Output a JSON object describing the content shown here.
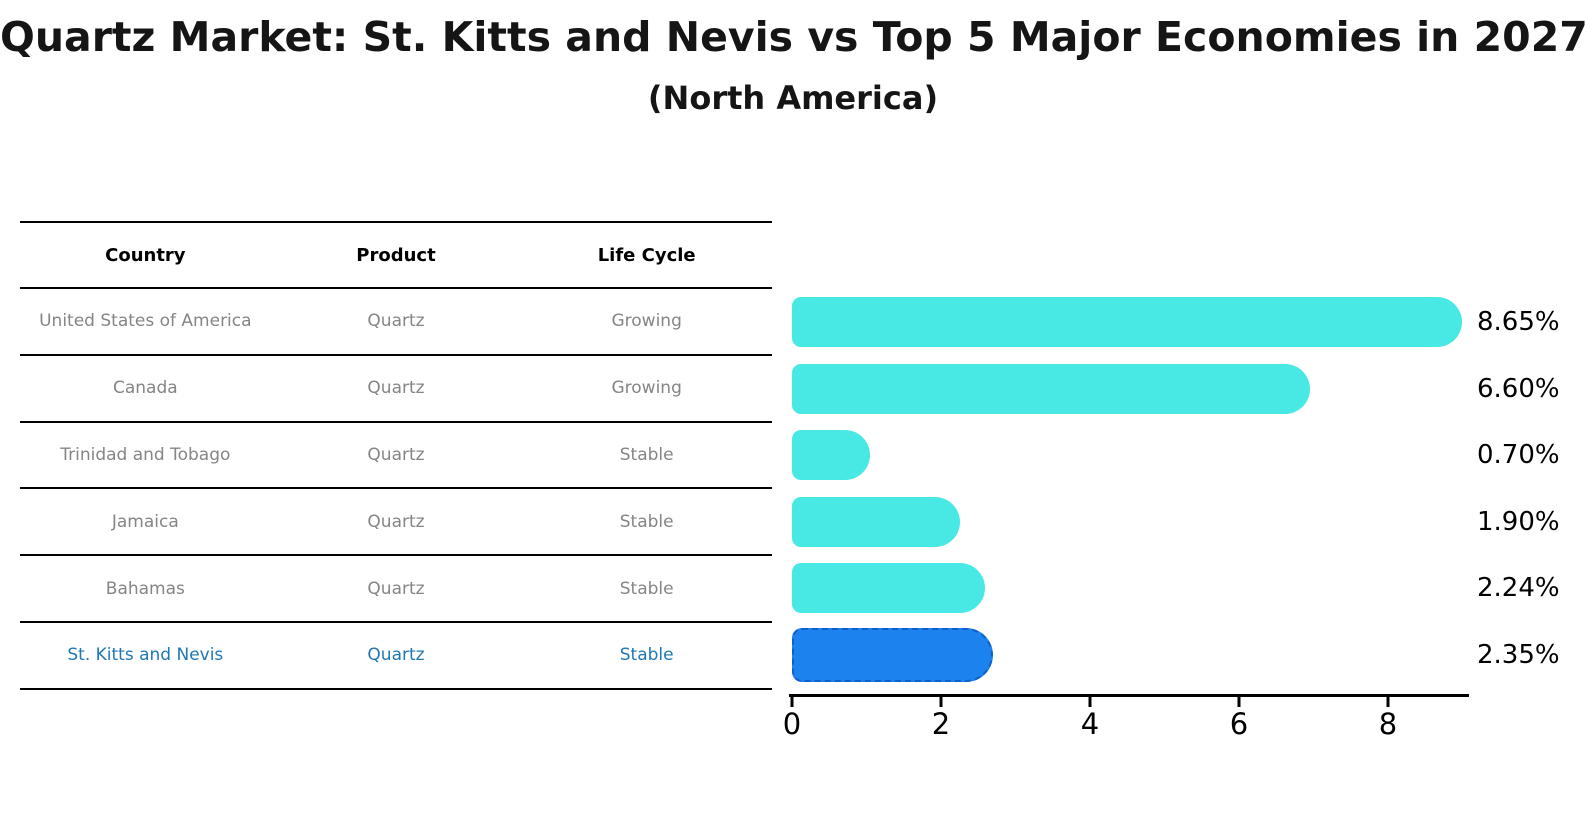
{
  "title": "Quartz Market: St. Kitts and Nevis vs Top 5 Major Economies in 2027",
  "subtitle": "(North America)",
  "table": {
    "headers": [
      "Country",
      "Product",
      "Life Cycle"
    ],
    "rows": [
      {
        "country": "United States of America",
        "product": "Quartz",
        "life_cycle": "Growing",
        "highlighted": false
      },
      {
        "country": "Canada",
        "product": "Quartz",
        "life_cycle": "Growing",
        "highlighted": false
      },
      {
        "country": "Trinidad and Tobago",
        "product": "Quartz",
        "life_cycle": "Stable",
        "highlighted": false
      },
      {
        "country": "Jamaica",
        "product": "Quartz",
        "life_cycle": "Stable",
        "highlighted": false
      },
      {
        "country": "Bahamas",
        "product": "Quartz",
        "life_cycle": "Stable",
        "highlighted": false
      },
      {
        "country": "St. Kitts and Nevis",
        "product": "Quartz",
        "life_cycle": "Stable",
        "highlighted": true
      }
    ]
  },
  "chart_data": {
    "type": "bar",
    "orientation": "horizontal",
    "title": "Quartz Market: St. Kitts and Nevis vs Top 5 Major Economies in 2027",
    "subtitle": "(North America)",
    "categories": [
      "United States of America",
      "Canada",
      "Trinidad and Tobago",
      "Jamaica",
      "Bahamas",
      "St. Kitts and Nevis"
    ],
    "values": [
      8.65,
      6.6,
      0.7,
      1.9,
      2.24,
      2.35
    ],
    "value_labels": [
      "8.65%",
      "6.60%",
      "0.70%",
      "1.90%",
      "2.24%",
      "2.35%"
    ],
    "x_ticks": [
      0,
      2,
      4,
      6,
      8
    ],
    "x_tick_labels": [
      "0",
      "2",
      "4",
      "6",
      "8"
    ],
    "xlim": [
      0,
      9.1
    ],
    "grid": false,
    "legend": "none",
    "highlight_index": 5
  },
  "colors": {
    "bar": "#48E8E4",
    "highlight_bar": "#1B82EE",
    "highlight_border": "#0E5FC8",
    "highlight_text": "#1f77b4",
    "row_text": "#858585",
    "axis": "#000000",
    "title_text": "#151515"
  }
}
